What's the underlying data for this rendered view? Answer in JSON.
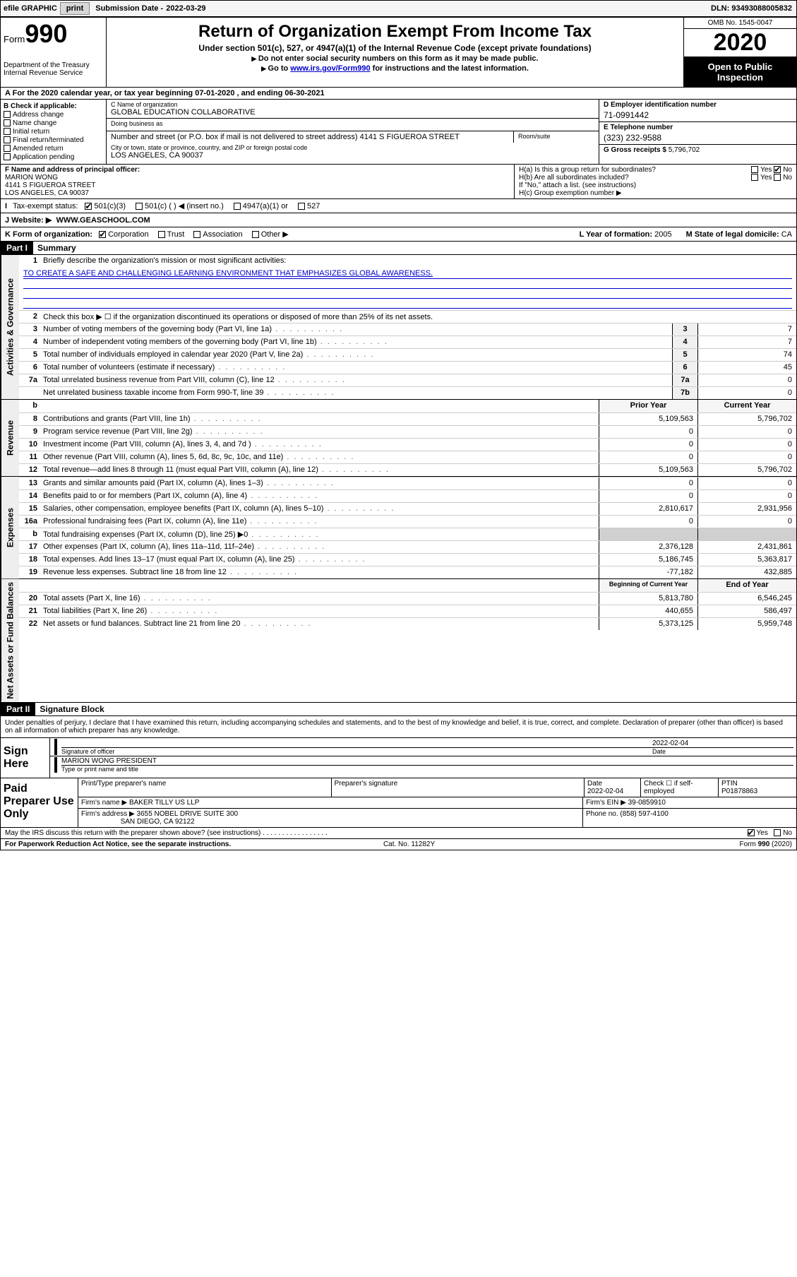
{
  "topbar": {
    "efile": "efile GRAPHIC",
    "print": "print",
    "sub_label": "Submission Date -",
    "sub_date": "2022-03-29",
    "dln_label": "DLN:",
    "dln": "93493088005832"
  },
  "header": {
    "form_prefix": "Form",
    "form_num": "990",
    "dept": "Department of the Treasury\nInternal Revenue Service",
    "title": "Return of Organization Exempt From Income Tax",
    "subtitle": "Under section 501(c), 527, or 4947(a)(1) of the Internal Revenue Code (except private foundations)",
    "note1": "Do not enter social security numbers on this form as it may be made public.",
    "note2_pre": "Go to ",
    "note2_link": "www.irs.gov/Form990",
    "note2_post": " for instructions and the latest information.",
    "omb": "OMB No. 1545-0047",
    "year": "2020",
    "inspect": "Open to Public Inspection"
  },
  "line_a": "For the 2020 calendar year, or tax year beginning 07-01-2020   , and ending 06-30-2021",
  "box_b": {
    "title": "B Check if applicable:",
    "items": [
      "Address change",
      "Name change",
      "Initial return",
      "Final return/terminated",
      "Amended return",
      "Application pending"
    ]
  },
  "box_c": {
    "name_lab": "C Name of organization",
    "name": "GLOBAL EDUCATION COLLABORATIVE",
    "dba_lab": "Doing business as",
    "dba": "",
    "street_lab": "Number and street (or P.O. box if mail is not delivered to street address)",
    "room_lab": "Room/suite",
    "street": "4141 S FIGUEROA STREET",
    "city_lab": "City or town, state or province, country, and ZIP or foreign postal code",
    "city": "LOS ANGELES, CA  90037"
  },
  "box_d": {
    "lab": "D Employer identification number",
    "val": "71-0991442"
  },
  "box_e": {
    "lab": "E Telephone number",
    "val": "(323) 232-9588"
  },
  "box_g": {
    "lab": "G Gross receipts $",
    "val": "5,796,702"
  },
  "box_f": {
    "lab": "F Name and address of principal officer:",
    "name": "MARION WONG",
    "addr1": "4141 S FIGUEROA STREET",
    "addr2": "LOS ANGELES, CA  90037"
  },
  "box_h": {
    "a": "H(a)  Is this a group return for subordinates?",
    "b": "H(b)  Are all subordinates included?",
    "b_note": "If \"No,\" attach a list. (see instructions)",
    "c": "H(c)  Group exemption number ▶"
  },
  "box_i": {
    "lab": "Tax-exempt status:",
    "opts": [
      "501(c)(3)",
      "501(c) (  ) ◀ (insert no.)",
      "4947(a)(1) or",
      "527"
    ]
  },
  "box_j": {
    "lab": "J   Website: ▶",
    "val": "WWW.GEASCHOOL.COM"
  },
  "box_k": {
    "lab": "K Form of organization:",
    "opts": [
      "Corporation",
      "Trust",
      "Association",
      "Other ▶"
    ]
  },
  "box_l": {
    "lab": "L Year of formation:",
    "val": "2005"
  },
  "box_m": {
    "lab": "M State of legal domicile:",
    "val": "CA"
  },
  "part1": {
    "hdr": "Part I",
    "title": "Summary"
  },
  "summary": {
    "l1_lab": "Briefly describe the organization's mission or most significant activities:",
    "l1_val": "TO CREATE A SAFE AND CHALLENGING LEARNING ENVIRONMENT THAT EMPHASIZES GLOBAL AWARENESS.",
    "l2": "Check this box ▶ ☐  if the organization discontinued its operations or disposed of more than 25% of its net assets.",
    "lines_single": [
      {
        "n": "3",
        "d": "Number of voting members of the governing body (Part VI, line 1a)",
        "c": "3",
        "v": "7"
      },
      {
        "n": "4",
        "d": "Number of independent voting members of the governing body (Part VI, line 1b)",
        "c": "4",
        "v": "7"
      },
      {
        "n": "5",
        "d": "Total number of individuals employed in calendar year 2020 (Part V, line 2a)",
        "c": "5",
        "v": "74"
      },
      {
        "n": "6",
        "d": "Total number of volunteers (estimate if necessary)",
        "c": "6",
        "v": "45"
      },
      {
        "n": "7a",
        "d": "Total unrelated business revenue from Part VIII, column (C), line 12",
        "c": "7a",
        "v": "0"
      },
      {
        "n": "",
        "d": "Net unrelated business taxable income from Form 990-T, line 39",
        "c": "7b",
        "v": "0"
      }
    ],
    "col_hdr_b": "b",
    "col_prior": "Prior Year",
    "col_current": "Current Year",
    "rev": [
      {
        "n": "8",
        "d": "Contributions and grants (Part VIII, line 1h)",
        "p": "5,109,563",
        "c": "5,796,702"
      },
      {
        "n": "9",
        "d": "Program service revenue (Part VIII, line 2g)",
        "p": "0",
        "c": "0"
      },
      {
        "n": "10",
        "d": "Investment income (Part VIII, column (A), lines 3, 4, and 7d )",
        "p": "0",
        "c": "0"
      },
      {
        "n": "11",
        "d": "Other revenue (Part VIII, column (A), lines 5, 6d, 8c, 9c, 10c, and 11e)",
        "p": "0",
        "c": "0"
      },
      {
        "n": "12",
        "d": "Total revenue—add lines 8 through 11 (must equal Part VIII, column (A), line 12)",
        "p": "5,109,563",
        "c": "5,796,702"
      }
    ],
    "exp": [
      {
        "n": "13",
        "d": "Grants and similar amounts paid (Part IX, column (A), lines 1–3)",
        "p": "0",
        "c": "0"
      },
      {
        "n": "14",
        "d": "Benefits paid to or for members (Part IX, column (A), line 4)",
        "p": "0",
        "c": "0"
      },
      {
        "n": "15",
        "d": "Salaries, other compensation, employee benefits (Part IX, column (A), lines 5–10)",
        "p": "2,810,617",
        "c": "2,931,956"
      },
      {
        "n": "16a",
        "d": "Professional fundraising fees (Part IX, column (A), line 11e)",
        "p": "0",
        "c": "0"
      },
      {
        "n": "b",
        "d": "Total fundraising expenses (Part IX, column (D), line 25) ▶0",
        "p": "",
        "c": "",
        "shade": true
      },
      {
        "n": "17",
        "d": "Other expenses (Part IX, column (A), lines 11a–11d, 11f–24e)",
        "p": "2,376,128",
        "c": "2,431,861"
      },
      {
        "n": "18",
        "d": "Total expenses. Add lines 13–17 (must equal Part IX, column (A), line 25)",
        "p": "5,186,745",
        "c": "5,363,817"
      },
      {
        "n": "19",
        "d": "Revenue less expenses. Subtract line 18 from line 12",
        "p": "-77,182",
        "c": "432,885"
      }
    ],
    "col_begin": "Beginning of Current Year",
    "col_end": "End of Year",
    "net": [
      {
        "n": "20",
        "d": "Total assets (Part X, line 16)",
        "p": "5,813,780",
        "c": "6,546,245"
      },
      {
        "n": "21",
        "d": "Total liabilities (Part X, line 26)",
        "p": "440,655",
        "c": "586,497"
      },
      {
        "n": "22",
        "d": "Net assets or fund balances. Subtract line 21 from line 20",
        "p": "5,373,125",
        "c": "5,959,748"
      }
    ],
    "tabs": {
      "gov": "Activities & Governance",
      "rev": "Revenue",
      "exp": "Expenses",
      "net": "Net Assets or Fund Balances"
    }
  },
  "part2": {
    "hdr": "Part II",
    "title": "Signature Block"
  },
  "sig": {
    "perjury": "Under penalties of perjury, I declare that I have examined this return, including accompanying schedules and statements, and to the best of my knowledge and belief, it is true, correct, and complete. Declaration of preparer (other than officer) is based on all information of which preparer has any knowledge.",
    "sign_here": "Sign Here",
    "sig_of_officer": "Signature of officer",
    "date_lab": "Date",
    "date": "2022-02-04",
    "name_title": "MARION WONG  PRESIDENT",
    "name_title_lab": "Type or print name and title"
  },
  "prep": {
    "title": "Paid Preparer Use Only",
    "h_name": "Print/Type preparer's name",
    "h_sig": "Preparer's signature",
    "h_date": "Date",
    "h_date_v": "2022-02-04",
    "h_check": "Check ☐ if self-employed",
    "h_ptin": "PTIN",
    "ptin": "P01878863",
    "firm_name_lab": "Firm's name   ▶",
    "firm_name": "BAKER TILLY US LLP",
    "firm_ein_lab": "Firm's EIN ▶",
    "firm_ein": "39-0859910",
    "firm_addr_lab": "Firm's address ▶",
    "firm_addr1": "3655 NOBEL DRIVE SUITE 300",
    "firm_addr2": "SAN DIEGO, CA  92122",
    "phone_lab": "Phone no.",
    "phone": "(858) 597-4100"
  },
  "discuss": "May the IRS discuss this return with the preparer shown above? (see instructions)",
  "footer": {
    "left": "For Paperwork Reduction Act Notice, see the separate instructions.",
    "mid": "Cat. No. 11282Y",
    "right": "Form 990 (2020)"
  },
  "yesno": {
    "yes": "Yes",
    "no": "No"
  }
}
